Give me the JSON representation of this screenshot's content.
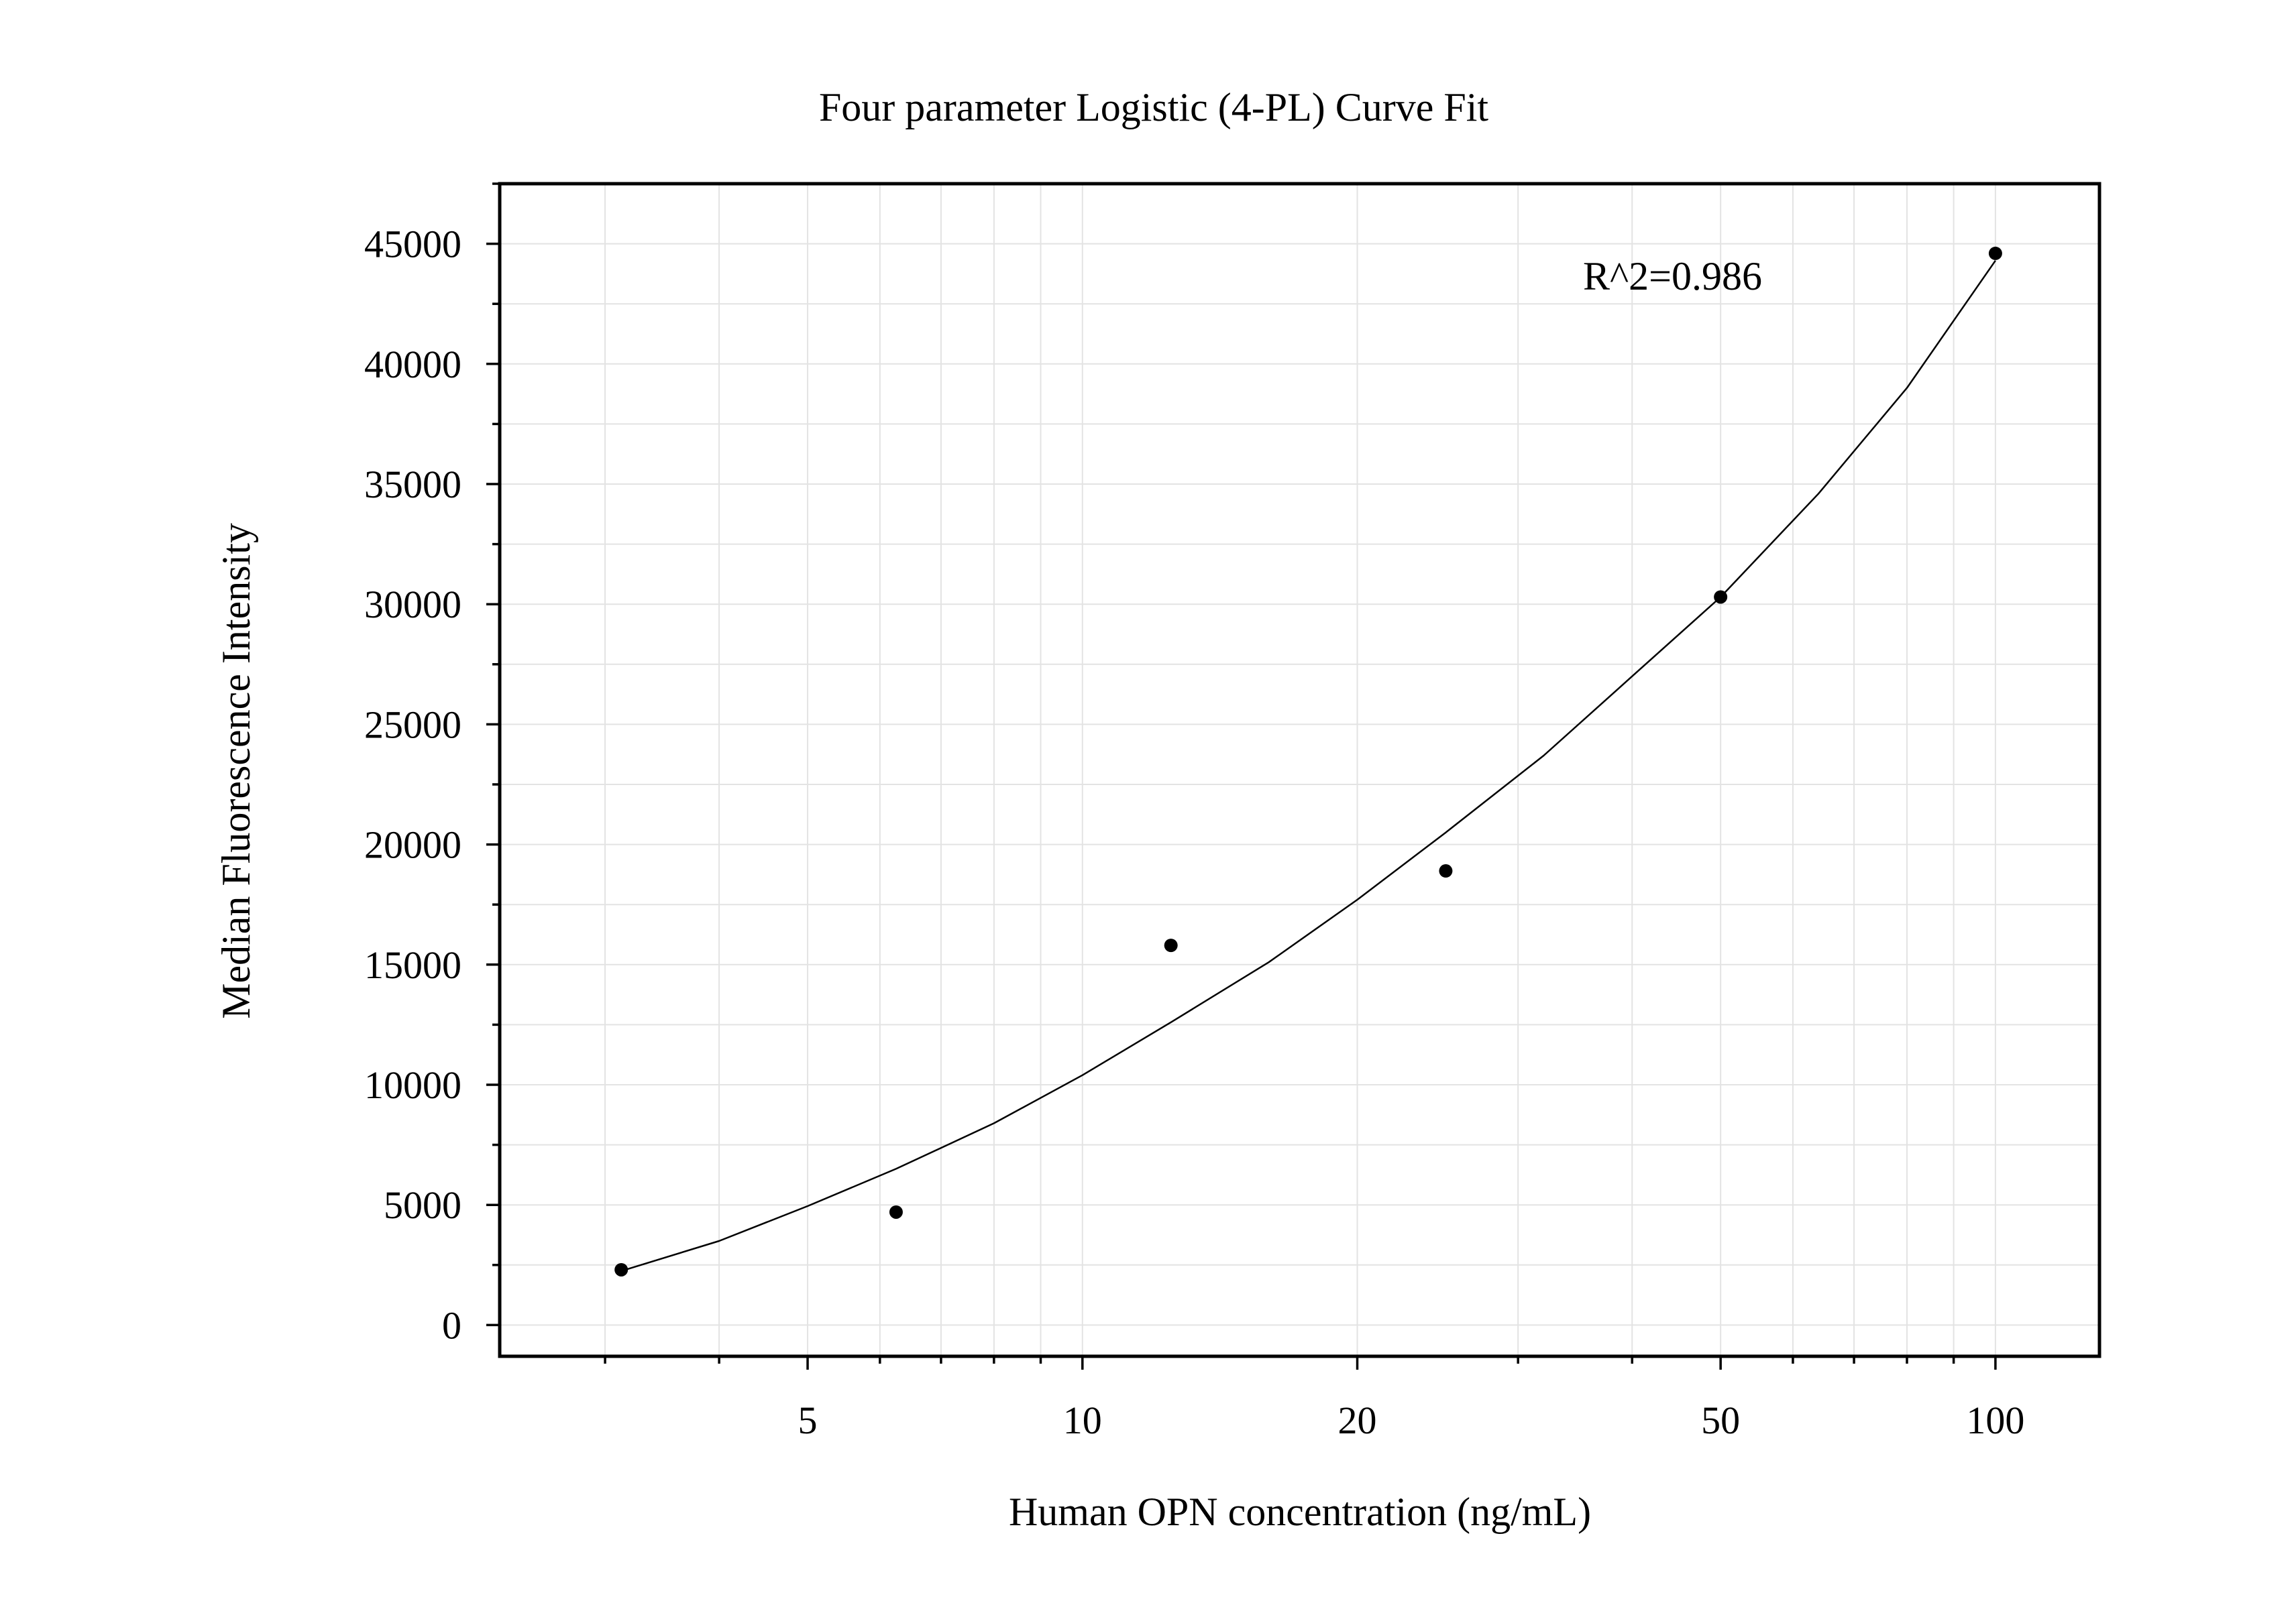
{
  "chart_data": {
    "type": "scatter",
    "title": "Four parameter Logistic (4-PL) Curve Fit",
    "xlabel": "Human OPN concentration (ng/mL)",
    "ylabel": "Median Fluorescence Intensity",
    "x_scale": "log",
    "xlim": [
      2.3,
      130
    ],
    "ylim": [
      -1300,
      47500
    ],
    "x_ticks": [
      5,
      10,
      20,
      50,
      100
    ],
    "x_tick_labels": [
      "5",
      "10",
      "20",
      "50",
      "100"
    ],
    "y_ticks": [
      0,
      5000,
      10000,
      15000,
      20000,
      25000,
      30000,
      35000,
      40000,
      45000
    ],
    "y_tick_labels": [
      "0",
      "5000",
      "10000",
      "15000",
      "20000",
      "25000",
      "30000",
      "35000",
      "40000",
      "45000"
    ],
    "grid": true,
    "annotation": "R^2=0.986",
    "series": [
      {
        "x": [
          3.125,
          6.25,
          12.5,
          25,
          50,
          100
        ],
        "y": [
          2300,
          4700,
          15800,
          18900,
          30300,
          44600
        ]
      }
    ],
    "fit_curve": {
      "type": "4-PL",
      "x_range": [
        3.125,
        100
      ],
      "points": [
        [
          3.125,
          2250
        ],
        [
          4,
          3500
        ],
        [
          5,
          4950
        ],
        [
          6.25,
          6500
        ],
        [
          8,
          8400
        ],
        [
          10,
          10400
        ],
        [
          12.5,
          12600
        ],
        [
          16,
          15100
        ],
        [
          20,
          17700
        ],
        [
          25,
          20500
        ],
        [
          32,
          23700
        ],
        [
          40,
          27000
        ],
        [
          50,
          30300
        ],
        [
          64,
          34600
        ],
        [
          80,
          39000
        ],
        [
          100,
          44300
        ]
      ]
    },
    "colors": {
      "points": "#000000",
      "curve": "#000000",
      "grid": "#e3e3e3",
      "frame": "#000000"
    }
  }
}
